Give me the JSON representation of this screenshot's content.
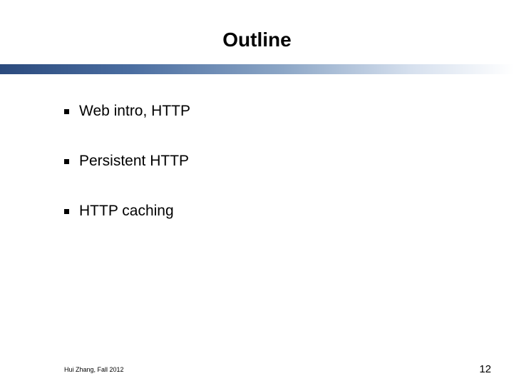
{
  "slide": {
    "title": "Outline",
    "bullets": [
      "Web intro, HTTP",
      "Persistent HTTP",
      "HTTP caching"
    ],
    "footer_left": "Hui Zhang, Fall 2012",
    "page_number": "12",
    "divider_gradient": {
      "start_color": "#2b4a7d",
      "mid1_color": "#4a6da0",
      "mid2_color": "#8ca6c6",
      "mid3_color": "#d6e0ee",
      "end_color": "#ffffff"
    },
    "title_fontsize": 28,
    "bullet_fontsize": 21,
    "footer_fontsize": 9,
    "page_number_fontsize": 15,
    "background_color": "#ffffff",
    "text_color": "#000000"
  }
}
